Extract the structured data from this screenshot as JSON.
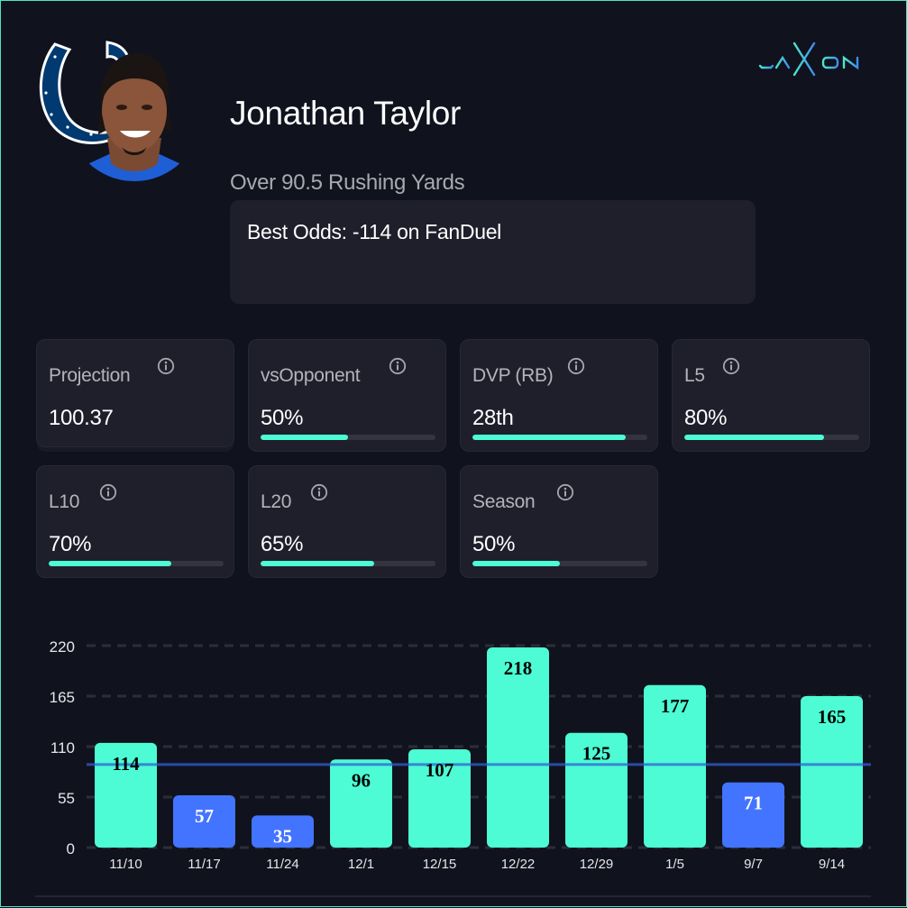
{
  "brand": {
    "name": "JAXON",
    "logo_icon": "jaxon-logo"
  },
  "team": {
    "logo_icon": "colts-horseshoe-logo",
    "color": "#003a70"
  },
  "player": {
    "name": "Jonathan Taylor",
    "photo_icon": "player-headshot"
  },
  "prop": {
    "market": "Over 90.5 Rushing Yards",
    "best_odds": "Best Odds: -114 on FanDuel"
  },
  "stats": [
    {
      "label": "Projection",
      "value": "100.37",
      "fill": null
    },
    {
      "label": "vsOpponent",
      "value": "50%",
      "fill": 0.5
    },
    {
      "label": "DVP (RB)",
      "value": "28th",
      "fill": 0.875
    },
    {
      "label": "L5",
      "value": "80%",
      "fill": 0.8
    },
    {
      "label": "L10",
      "value": "70%",
      "fill": 0.7
    },
    {
      "label": "L20",
      "value": "65%",
      "fill": 0.65
    },
    {
      "label": "Season",
      "value": "50%",
      "fill": 0.5
    }
  ],
  "colors": {
    "accent": "#4dfcd4",
    "under": "#4274ff",
    "threshold": "#2f5fd6",
    "card": "#1e1f2b",
    "background": "#10121d"
  },
  "chart_data": {
    "type": "bar",
    "title": "",
    "xlabel": "",
    "ylabel": "",
    "categories": [
      "11/10",
      "11/17",
      "11/24",
      "12/1",
      "12/15",
      "12/22",
      "12/29",
      "1/5",
      "9/7",
      "9/14"
    ],
    "values": [
      114,
      57,
      35,
      96,
      107,
      218,
      125,
      177,
      71,
      165
    ],
    "data_labels": [
      "114",
      "57",
      "35",
      "96",
      "107",
      "218",
      "125",
      "177",
      "71",
      "165"
    ],
    "threshold": 90.5,
    "ylim": [
      0,
      220
    ],
    "yticks": [
      0,
      55,
      110,
      165,
      220
    ],
    "ytick_labels": [
      "0",
      "55",
      "110",
      "165",
      "220"
    ],
    "grid": true,
    "over_color": "#4dfcd4",
    "under_color": "#4274ff"
  }
}
